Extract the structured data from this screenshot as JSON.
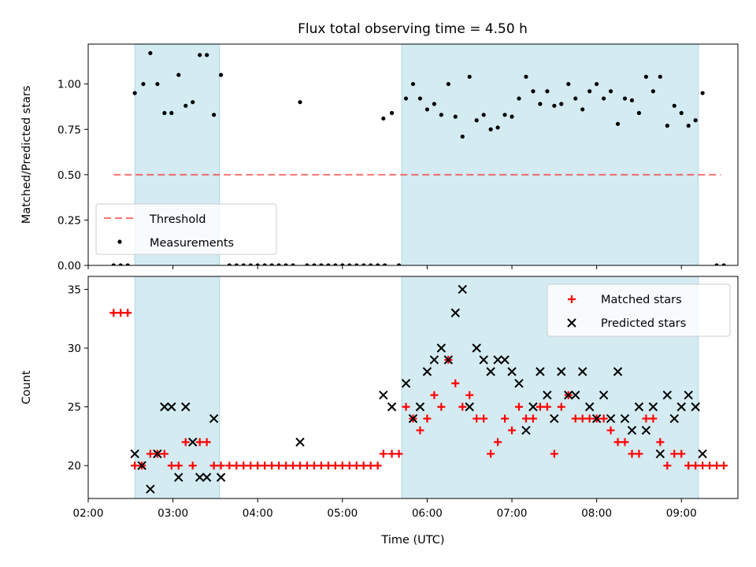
{
  "figure": {
    "title": "Flux total observing time = 4.50 h",
    "shade_color": "#add8e6"
  },
  "chart_data": [
    {
      "type": "scatter",
      "title": "Flux total observing time = 4.50 h",
      "ylabel": "Matched/Predicted stars",
      "xlabel": "",
      "xlim": [
        "02:00",
        "09:40"
      ],
      "ylim": [
        0,
        1.22
      ],
      "yticks": [
        "0.00",
        "0.25",
        "0.50",
        "0.75",
        "1.00"
      ],
      "shaded_regions": [
        [
          "02:33",
          "03:33"
        ],
        [
          "05:42",
          "09:12"
        ]
      ],
      "threshold": {
        "name": "Threshold",
        "y": 0.5,
        "x": [
          "02:18",
          "09:28"
        ],
        "color": "#ff0000",
        "opacity": 0.55
      },
      "legend": {
        "position": "lower left",
        "entries": [
          "Threshold",
          "Measurements"
        ]
      },
      "series": [
        {
          "name": "Measurements",
          "color": "#000000",
          "points": [
            [
              "02:18",
              0
            ],
            [
              "02:23",
              0
            ],
            [
              "02:28",
              0
            ],
            [
              "02:33",
              0.95
            ],
            [
              "02:39",
              1.0
            ],
            [
              "02:44",
              1.17
            ],
            [
              "02:49",
              1.0
            ],
            [
              "02:54",
              0.84
            ],
            [
              "02:59",
              0.84
            ],
            [
              "03:04",
              1.05
            ],
            [
              "03:09",
              0.88
            ],
            [
              "03:14",
              0.9
            ],
            [
              "03:19",
              1.16
            ],
            [
              "03:24",
              1.16
            ],
            [
              "03:29",
              0.83
            ],
            [
              "03:34",
              1.05
            ],
            [
              "03:40",
              0
            ],
            [
              "03:45",
              0
            ],
            [
              "03:50",
              0
            ],
            [
              "03:55",
              0
            ],
            [
              "04:00",
              0
            ],
            [
              "04:05",
              0
            ],
            [
              "04:10",
              0
            ],
            [
              "04:15",
              0
            ],
            [
              "04:20",
              0
            ],
            [
              "04:25",
              0
            ],
            [
              "04:30",
              0.9
            ],
            [
              "04:35",
              0
            ],
            [
              "04:40",
              0
            ],
            [
              "04:45",
              0
            ],
            [
              "04:50",
              0
            ],
            [
              "04:55",
              0
            ],
            [
              "05:00",
              0
            ],
            [
              "05:05",
              0
            ],
            [
              "05:10",
              0
            ],
            [
              "05:15",
              0
            ],
            [
              "05:20",
              0
            ],
            [
              "05:25",
              0
            ],
            [
              "05:30",
              0
            ],
            [
              "05:29",
              0.81
            ],
            [
              "05:35",
              0.84
            ],
            [
              "05:40",
              0
            ],
            [
              "05:45",
              0.92
            ],
            [
              "05:50",
              1.0
            ],
            [
              "05:55",
              0.92
            ],
            [
              "06:00",
              0.86
            ],
            [
              "06:05",
              0.89
            ],
            [
              "06:10",
              0.83
            ],
            [
              "06:15",
              1.0
            ],
            [
              "06:20",
              0.82
            ],
            [
              "06:25",
              0.71
            ],
            [
              "06:30",
              1.04
            ],
            [
              "06:35",
              0.8
            ],
            [
              "06:40",
              0.83
            ],
            [
              "06:45",
              0.75
            ],
            [
              "06:50",
              0.76
            ],
            [
              "06:55",
              0.83
            ],
            [
              "07:00",
              0.82
            ],
            [
              "07:05",
              0.92
            ],
            [
              "07:10",
              1.04
            ],
            [
              "07:15",
              0.96
            ],
            [
              "07:20",
              0.89
            ],
            [
              "07:25",
              0.96
            ],
            [
              "07:30",
              0.88
            ],
            [
              "07:35",
              0.89
            ],
            [
              "07:40",
              1.0
            ],
            [
              "07:45",
              0.92
            ],
            [
              "07:50",
              0.86
            ],
            [
              "07:55",
              0.96
            ],
            [
              "08:00",
              1.0
            ],
            [
              "08:05",
              0.92
            ],
            [
              "08:10",
              0.96
            ],
            [
              "08:15",
              0.78
            ],
            [
              "08:20",
              0.92
            ],
            [
              "08:25",
              0.91
            ],
            [
              "08:30",
              0.84
            ],
            [
              "08:35",
              1.04
            ],
            [
              "08:40",
              0.96
            ],
            [
              "08:45",
              1.04
            ],
            [
              "08:50",
              0.77
            ],
            [
              "08:55",
              0.88
            ],
            [
              "09:00",
              0.84
            ],
            [
              "09:05",
              0.77
            ],
            [
              "09:10",
              0.8
            ],
            [
              "09:15",
              0.95
            ],
            [
              "09:25",
              0
            ],
            [
              "09:30",
              0
            ]
          ]
        }
      ]
    },
    {
      "type": "scatter",
      "title": "",
      "ylabel": "Count",
      "xlabel": "Time (UTC)",
      "xlim": [
        "02:00",
        "09:40"
      ],
      "ylim": [
        17.2,
        36.1
      ],
      "yticks": [
        "20",
        "25",
        "30",
        "35"
      ],
      "xticks": [
        "02:00",
        "03:00",
        "04:00",
        "05:00",
        "06:00",
        "07:00",
        "08:00",
        "09:00"
      ],
      "shaded_regions": [
        [
          "02:33",
          "03:33"
        ],
        [
          "05:42",
          "09:12"
        ]
      ],
      "legend": {
        "position": "upper right",
        "entries": [
          "Matched stars",
          "Predicted stars"
        ]
      },
      "series": [
        {
          "name": "Matched stars",
          "marker": "+",
          "color": "#ff0000",
          "points": [
            [
              "02:18",
              33
            ],
            [
              "02:23",
              33
            ],
            [
              "02:28",
              33
            ],
            [
              "02:33",
              20
            ],
            [
              "02:38",
              20
            ],
            [
              "02:44",
              21
            ],
            [
              "02:49",
              21
            ],
            [
              "02:54",
              21
            ],
            [
              "02:59",
              20
            ],
            [
              "03:04",
              20
            ],
            [
              "03:09",
              22
            ],
            [
              "03:14",
              20
            ],
            [
              "03:19",
              22
            ],
            [
              "03:24",
              22
            ],
            [
              "03:29",
              20
            ],
            [
              "03:34",
              20
            ],
            [
              "03:40",
              20
            ],
            [
              "03:45",
              20
            ],
            [
              "03:50",
              20
            ],
            [
              "03:55",
              20
            ],
            [
              "04:00",
              20
            ],
            [
              "04:05",
              20
            ],
            [
              "04:10",
              20
            ],
            [
              "04:15",
              20
            ],
            [
              "04:20",
              20
            ],
            [
              "04:25",
              20
            ],
            [
              "04:30",
              20
            ],
            [
              "04:35",
              20
            ],
            [
              "04:40",
              20
            ],
            [
              "04:45",
              20
            ],
            [
              "04:50",
              20
            ],
            [
              "04:55",
              20
            ],
            [
              "05:00",
              20
            ],
            [
              "05:05",
              20
            ],
            [
              "05:10",
              20
            ],
            [
              "05:15",
              20
            ],
            [
              "05:20",
              20
            ],
            [
              "05:25",
              20
            ],
            [
              "05:29",
              21
            ],
            [
              "05:35",
              21
            ],
            [
              "05:40",
              21
            ],
            [
              "05:45",
              25
            ],
            [
              "05:50",
              24
            ],
            [
              "05:55",
              23
            ],
            [
              "06:00",
              24
            ],
            [
              "06:05",
              26
            ],
            [
              "06:10",
              25
            ],
            [
              "06:15",
              29
            ],
            [
              "06:20",
              27
            ],
            [
              "06:25",
              25
            ],
            [
              "06:30",
              26
            ],
            [
              "06:35",
              24
            ],
            [
              "06:40",
              24
            ],
            [
              "06:45",
              21
            ],
            [
              "06:50",
              22
            ],
            [
              "06:55",
              24
            ],
            [
              "07:00",
              23
            ],
            [
              "07:05",
              25
            ],
            [
              "07:10",
              24
            ],
            [
              "07:15",
              24
            ],
            [
              "07:20",
              25
            ],
            [
              "07:25",
              25
            ],
            [
              "07:30",
              21
            ],
            [
              "07:35",
              25
            ],
            [
              "07:40",
              26
            ],
            [
              "07:45",
              24
            ],
            [
              "07:50",
              24
            ],
            [
              "07:55",
              24
            ],
            [
              "08:00",
              24
            ],
            [
              "08:05",
              24
            ],
            [
              "08:10",
              23
            ],
            [
              "08:15",
              22
            ],
            [
              "08:20",
              22
            ],
            [
              "08:25",
              21
            ],
            [
              "08:30",
              21
            ],
            [
              "08:35",
              24
            ],
            [
              "08:40",
              24
            ],
            [
              "08:45",
              22
            ],
            [
              "08:50",
              20
            ],
            [
              "08:55",
              21
            ],
            [
              "09:00",
              21
            ],
            [
              "09:05",
              20
            ],
            [
              "09:10",
              20
            ],
            [
              "09:15",
              20
            ],
            [
              "09:20",
              20
            ],
            [
              "09:25",
              20
            ],
            [
              "09:30",
              20
            ]
          ]
        },
        {
          "name": "Predicted stars",
          "marker": "x",
          "color": "#000000",
          "points": [
            [
              "02:33",
              21
            ],
            [
              "02:38",
              20
            ],
            [
              "02:44",
              18
            ],
            [
              "02:49",
              21
            ],
            [
              "02:54",
              25
            ],
            [
              "02:59",
              25
            ],
            [
              "03:04",
              19
            ],
            [
              "03:09",
              25
            ],
            [
              "03:14",
              22
            ],
            [
              "03:19",
              19
            ],
            [
              "03:24",
              19
            ],
            [
              "03:29",
              24
            ],
            [
              "03:34",
              19
            ],
            [
              "04:30",
              22
            ],
            [
              "05:29",
              26
            ],
            [
              "05:35",
              25
            ],
            [
              "05:45",
              27
            ],
            [
              "05:50",
              24
            ],
            [
              "05:55",
              25
            ],
            [
              "06:00",
              28
            ],
            [
              "06:05",
              29
            ],
            [
              "06:10",
              30
            ],
            [
              "06:15",
              29
            ],
            [
              "06:20",
              33
            ],
            [
              "06:25",
              35
            ],
            [
              "06:30",
              25
            ],
            [
              "06:35",
              30
            ],
            [
              "06:40",
              29
            ],
            [
              "06:45",
              28
            ],
            [
              "06:50",
              29
            ],
            [
              "06:55",
              29
            ],
            [
              "07:00",
              28
            ],
            [
              "07:05",
              27
            ],
            [
              "07:10",
              23
            ],
            [
              "07:15",
              25
            ],
            [
              "07:20",
              28
            ],
            [
              "07:25",
              26
            ],
            [
              "07:30",
              24
            ],
            [
              "07:35",
              28
            ],
            [
              "07:40",
              26
            ],
            [
              "07:45",
              26
            ],
            [
              "07:50",
              28
            ],
            [
              "07:55",
              25
            ],
            [
              "08:00",
              24
            ],
            [
              "08:05",
              26
            ],
            [
              "08:10",
              24
            ],
            [
              "08:15",
              28
            ],
            [
              "08:20",
              24
            ],
            [
              "08:25",
              23
            ],
            [
              "08:30",
              25
            ],
            [
              "08:35",
              23
            ],
            [
              "08:40",
              25
            ],
            [
              "08:45",
              21
            ],
            [
              "08:50",
              26
            ],
            [
              "08:55",
              24
            ],
            [
              "09:00",
              25
            ],
            [
              "09:05",
              26
            ],
            [
              "09:10",
              25
            ],
            [
              "09:15",
              21
            ]
          ]
        }
      ]
    }
  ]
}
